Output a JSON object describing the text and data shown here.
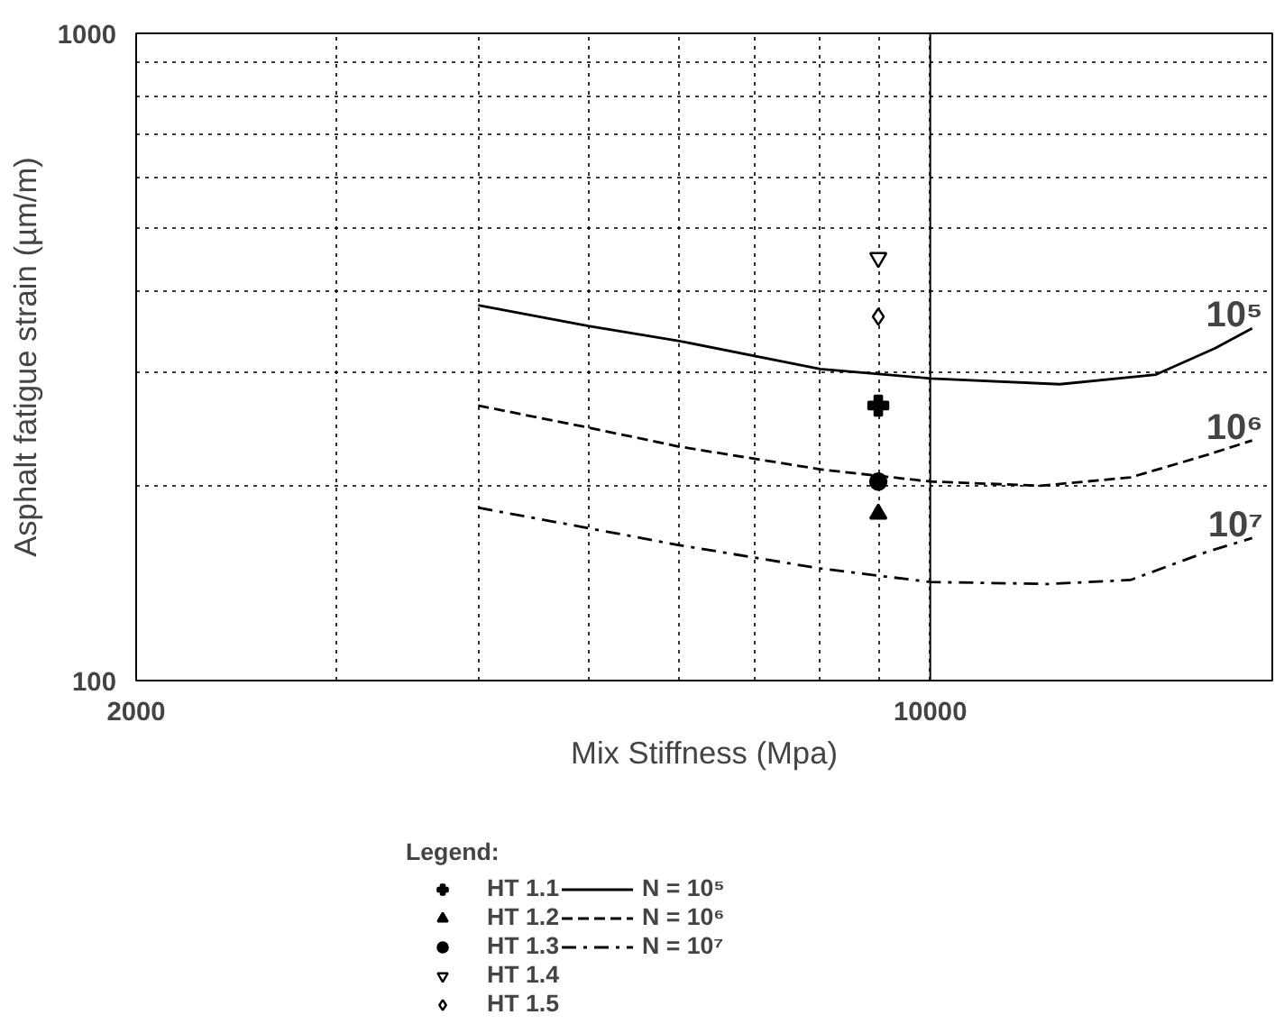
{
  "chart_data": {
    "type": "line",
    "xlabel": "Mix Stiffness (Mpa)",
    "ylabel": "Asphalt fatigue strain (µm/m)",
    "legend_title": "Legend:",
    "log": "xy",
    "grid": true,
    "legend": "bottom",
    "xlim": [
      2000,
      20000
    ],
    "ylim": [
      100,
      1000
    ],
    "xticks": [
      2000,
      {
        "value": 3000,
        "label": null
      },
      {
        "value": 4000,
        "label": null
      },
      {
        "value": 5000,
        "label": null
      },
      {
        "value": 6000,
        "label": null
      },
      {
        "value": 7000,
        "label": null
      },
      {
        "value": 8000,
        "label": null
      },
      {
        "value": 9000,
        "label": null
      },
      10000
    ],
    "yticks": [
      100,
      {
        "value": 200,
        "label": null
      },
      {
        "value": 300,
        "label": null
      },
      {
        "value": 400,
        "label": null
      },
      {
        "value": 500,
        "label": null
      },
      {
        "value": 600,
        "label": null
      },
      {
        "value": 700,
        "label": null
      },
      {
        "value": 800,
        "label": null
      },
      {
        "value": 900,
        "label": null
      },
      1000
    ],
    "ref_lines": [
      {
        "axis": "x",
        "value": 10000,
        "line_style": "solid",
        "color": "#000000"
      }
    ],
    "series": [
      {
        "name": "HT 1.1",
        "type": "scatter",
        "marker": "cross",
        "color": "#000000",
        "x": [
          9000
        ],
        "values": [
          266
        ]
      },
      {
        "name": "HT 1.2",
        "type": "scatter",
        "marker": "triangle",
        "color": "#000000",
        "x": [
          9000
        ],
        "values": [
          181
        ]
      },
      {
        "name": "HT 1.3",
        "type": "scatter",
        "marker": "circle",
        "color": "#000000",
        "x": [
          9000
        ],
        "values": [
          203
        ]
      },
      {
        "name": "HT 1.4",
        "type": "scatter",
        "marker": "triangle_down",
        "color": "#000000",
        "x": [
          9000
        ],
        "values": [
          450
        ]
      },
      {
        "name": "HT 1.5",
        "type": "scatter",
        "marker": "diamond",
        "color": "#000000",
        "x": [
          9000
        ],
        "values": [
          365
        ]
      },
      {
        "name": "N = 10⁵",
        "line_style": "solid",
        "color": "#000000",
        "x": [
          4000,
          5000,
          6000,
          8000,
          10000,
          13000,
          15800,
          17800,
          19200
        ],
        "values": [
          380,
          353,
          335,
          303,
          293,
          287,
          297,
          326,
          350
        ]
      },
      {
        "name": "N = 10⁶",
        "line_style": "dashed",
        "color": "#000000",
        "x": [
          4000,
          5000,
          6000,
          8000,
          10000,
          12500,
          15000,
          17500,
          19200
        ],
        "values": [
          266,
          246,
          230,
          212,
          203,
          200,
          206,
          223,
          235
        ]
      },
      {
        "name": "N = 10⁷",
        "line_style": "dashdot",
        "color": "#000000",
        "x": [
          4000,
          5000,
          6000,
          8000,
          10000,
          12700,
          15000,
          17500,
          19200
        ],
        "values": [
          185,
          172,
          162,
          149,
          142,
          141,
          143,
          158,
          166
        ]
      }
    ],
    "annotations": [
      "10⁵",
      "10⁶",
      "10⁷"
    ]
  }
}
